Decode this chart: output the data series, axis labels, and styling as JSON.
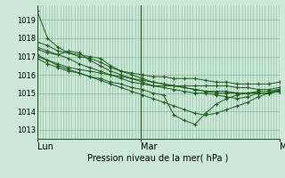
{
  "bg_color": "#cce8d8",
  "grid_color": "#88b898",
  "line_color": "#1a5c1a",
  "marker_color": "#1a5c1a",
  "ylabel_ticks": [
    1013,
    1014,
    1015,
    1016,
    1017,
    1018,
    1019
  ],
  "ylim": [
    1012.5,
    1019.8
  ],
  "xlabel": "Pression niveau de la mer( hPa )",
  "xtick_labels": [
    "Lun",
    "Mar",
    "Mer"
  ],
  "xtick_positions": [
    0,
    36,
    84
  ],
  "total_hours": 84,
  "series": [
    [
      1019.5,
      1018.0,
      1017.5,
      1017.2,
      1017.0,
      1016.9,
      1016.7,
      1016.4,
      1016.2,
      1016.1,
      1016.0,
      1015.9,
      1015.9,
      1015.8,
      1015.8,
      1015.8,
      1015.7,
      1015.6,
      1015.6,
      1015.5,
      1015.5,
      1015.5,
      1015.5,
      1015.6
    ],
    [
      1017.5,
      1017.3,
      1017.1,
      1016.9,
      1016.6,
      1016.4,
      1016.2,
      1016.0,
      1015.8,
      1015.6,
      1015.5,
      1015.4,
      1015.4,
      1015.4,
      1015.4,
      1015.4,
      1015.4,
      1015.4,
      1015.4,
      1015.3,
      1015.3,
      1015.2,
      1015.2,
      1015.3
    ],
    [
      1017.1,
      1016.8,
      1016.6,
      1016.4,
      1016.3,
      1016.2,
      1016.1,
      1016.0,
      1015.9,
      1015.8,
      1015.7,
      1015.6,
      1015.5,
      1015.4,
      1015.3,
      1015.2,
      1015.1,
      1015.1,
      1015.1,
      1015.0,
      1015.0,
      1015.0,
      1015.0,
      1015.1
    ],
    [
      1017.8,
      1017.6,
      1017.3,
      1017.2,
      1017.1,
      1017.0,
      1016.9,
      1016.5,
      1016.2,
      1016.0,
      1015.8,
      1015.6,
      1015.5,
      1015.4,
      1015.3,
      1015.2,
      1015.1,
      1015.0,
      1015.0,
      1015.0,
      1015.0,
      1015.0,
      1015.0,
      1015.1
    ],
    [
      1017.4,
      1017.2,
      1017.1,
      1017.3,
      1017.2,
      1016.8,
      1016.5,
      1016.2,
      1016.0,
      1015.8,
      1015.6,
      1015.4,
      1015.3,
      1015.2,
      1015.1,
      1015.0,
      1015.0,
      1014.9,
      1014.8,
      1014.7,
      1014.8,
      1015.0,
      1015.0,
      1015.1
    ],
    [
      1017.0,
      1016.8,
      1016.5,
      1016.3,
      1016.1,
      1015.9,
      1015.7,
      1015.5,
      1015.3,
      1015.1,
      1014.9,
      1014.7,
      1014.5,
      1014.3,
      1014.1,
      1013.9,
      1013.8,
      1013.9,
      1014.1,
      1014.3,
      1014.5,
      1014.8,
      1015.0,
      1015.2
    ],
    [
      1016.9,
      1016.6,
      1016.4,
      1016.2,
      1016.1,
      1015.9,
      1015.8,
      1015.6,
      1015.5,
      1015.3,
      1015.2,
      1015.0,
      1014.9,
      1013.8,
      1013.5,
      1013.3,
      1013.9,
      1014.4,
      1014.7,
      1014.9,
      1015.0,
      1015.1,
      1015.1,
      1015.2
    ]
  ]
}
